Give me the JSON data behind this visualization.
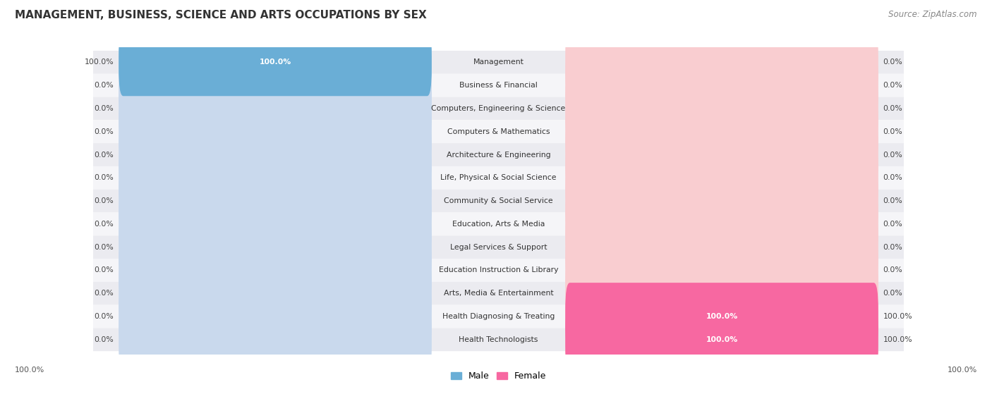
{
  "title": "MANAGEMENT, BUSINESS, SCIENCE AND ARTS OCCUPATIONS BY SEX",
  "source": "Source: ZipAtlas.com",
  "categories": [
    "Management",
    "Business & Financial",
    "Computers, Engineering & Science",
    "Computers & Mathematics",
    "Architecture & Engineering",
    "Life, Physical & Social Science",
    "Community & Social Service",
    "Education, Arts & Media",
    "Legal Services & Support",
    "Education Instruction & Library",
    "Arts, Media & Entertainment",
    "Health Diagnosing & Treating",
    "Health Technologists"
  ],
  "male_values": [
    100.0,
    0.0,
    0.0,
    0.0,
    0.0,
    0.0,
    0.0,
    0.0,
    0.0,
    0.0,
    0.0,
    0.0,
    0.0
  ],
  "female_values": [
    0.0,
    0.0,
    0.0,
    0.0,
    0.0,
    0.0,
    0.0,
    0.0,
    0.0,
    0.0,
    0.0,
    100.0,
    100.0
  ],
  "male_color": "#6aaed6",
  "female_color": "#f768a1",
  "male_bg_color": "#c9d9ed",
  "female_bg_color": "#f9cdd0",
  "bar_height": 0.52,
  "bg_bar_height": 0.6,
  "row_even_color": "#ebebf0",
  "row_odd_color": "#f5f5f8",
  "legend_male": "Male",
  "legend_female": "Female",
  "figure_bg": "#ffffff",
  "title_fontsize": 11,
  "label_fontsize": 7.8,
  "cat_fontsize": 7.8
}
